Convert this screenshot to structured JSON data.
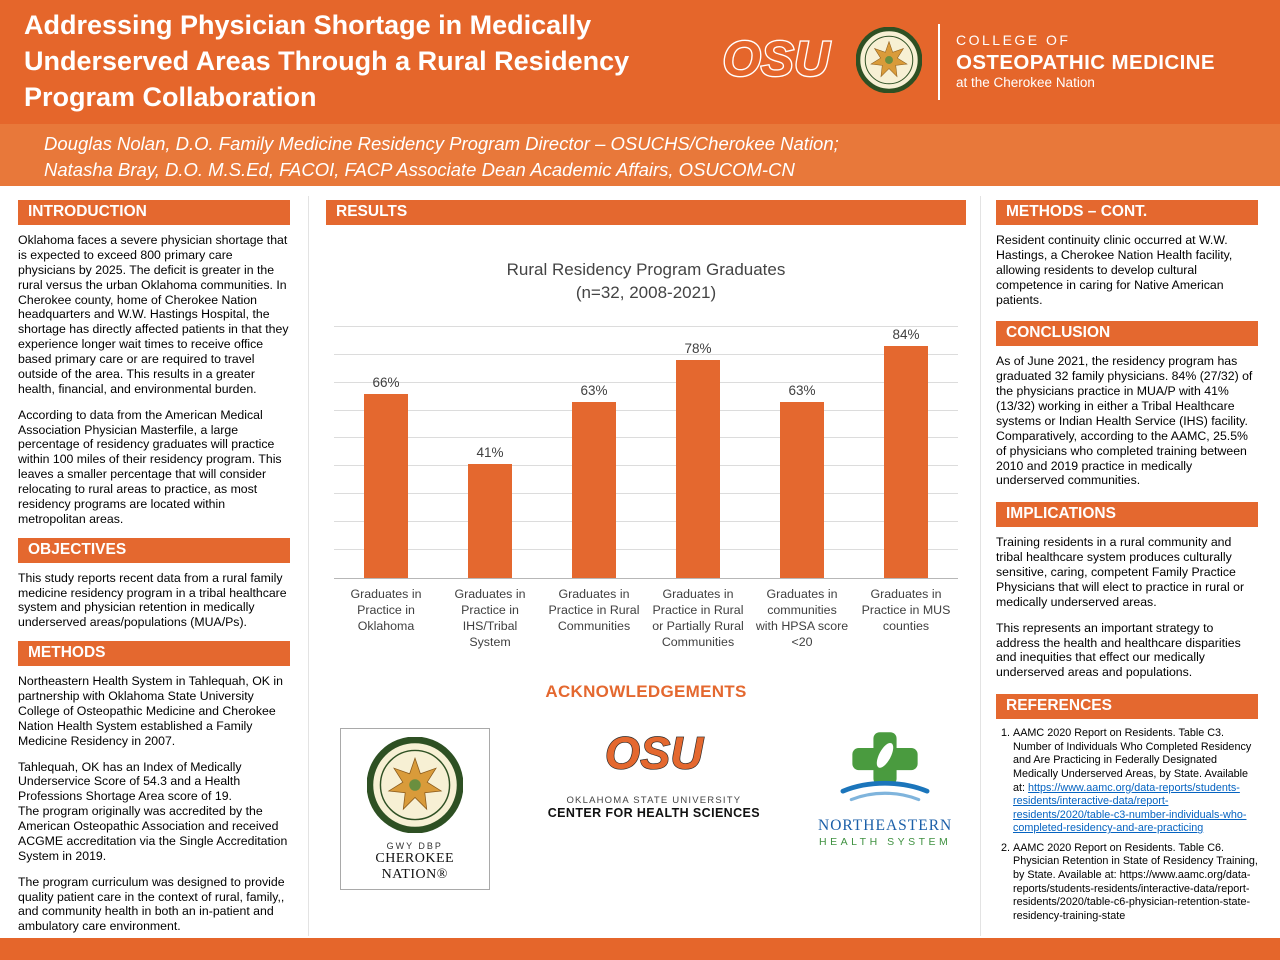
{
  "colors": {
    "header_orange": "#E5662B",
    "authors_orange": "#E8783A",
    "accent_orange": "#E4682F",
    "link_blue": "#0563C1",
    "ne_blue": "#1b5fa8",
    "ne_green": "#3f9140"
  },
  "header": {
    "title": "Addressing Physician Shortage in Medically Underserved Areas Through a Rural Residency Program Collaboration",
    "osu_logo_text": "OSU",
    "college_line1": "COLLEGE OF",
    "college_line2": "OSTEOPATHIC MEDICINE",
    "college_line3": "at the Cherokee Nation"
  },
  "authors": {
    "line1": "Douglas Nolan, D.O. Family Medicine Residency Program Director – OSUCHS/Cherokee Nation;",
    "line2": "Natasha Bray, D.O. M.S.Ed, FACOI, FACP Associate Dean Academic Affairs, OSUCOM-CN"
  },
  "left": {
    "introduction": {
      "title": "INTRODUCTION",
      "p1": "Oklahoma faces a severe physician shortage that is expected to exceed 800 primary care physicians by 2025.  The deficit is greater in the rural versus the urban Oklahoma communities.  In Cherokee county, home of Cherokee Nation headquarters and W.W. Hastings Hospital, the shortage has directly affected patients in that they experience longer wait times to receive office based primary care or are required to travel outside of the area. This results in a greater health, financial, and environmental burden.",
      "p2": "According to data from the American Medical Association Physician Masterfile, a large percentage of residency graduates will practice within 100 miles of their residency program.  This leaves a smaller percentage that will consider relocating to rural areas to practice, as most residency programs are located within metropolitan areas."
    },
    "objectives": {
      "title": "OBJECTIVES",
      "p1": "This study reports recent data from a rural family medicine residency program in a tribal healthcare system and physician retention in medically underserved areas/populations (MUA/Ps)."
    },
    "methods": {
      "title": "METHODS",
      "p1": "Northeastern Health System in Tahlequah, OK in partnership with Oklahoma State University College of Osteopathic Medicine and Cherokee Nation Health System established a Family Medicine Residency in 2007.",
      "p2": "Tahlequah, OK has an Index of Medically Underservice Score of 54.3 and a Health Professions Shortage Area score of 19.",
      "p3": "The program originally was accredited by the American Osteopathic Association and received ACGME accreditation via the Single Accreditation System in 2019.",
      "p4": "The program curriculum was designed to provide quality patient care in the context of rural, family,, and community health in  both an in-patient and ambulatory care environment."
    }
  },
  "middle": {
    "results_title": "RESULTS",
    "acknowledgements_title": "ACKNOWLEDGEMENTS",
    "logos": {
      "cherokee": {
        "syllabary": "GWY DBP",
        "name": "CHEROKEE NATION®"
      },
      "osu": {
        "mark": "OSU",
        "univ": "OKLAHOMA STATE UNIVERSITY",
        "center": "CENTER FOR HEALTH SCIENCES"
      },
      "northeastern": {
        "name": "NORTHEASTERN",
        "sub": "HEALTH  SYSTEM"
      }
    }
  },
  "right": {
    "methods_cont": {
      "title": "METHODS – CONT.",
      "p1": "Resident continuity clinic occurred at W.W. Hastings, a Cherokee Nation Health facility, allowing residents to develop cultural competence in caring for Native American patients."
    },
    "conclusion": {
      "title": "CONCLUSION",
      "p1": "As of June 2021, the residency program has graduated 32 family physicians.  84% (27/32) of the physicians practice in MUA/P with 41% (13/32) working in either a Tribal Healthcare systems or Indian Health Service (IHS) facility. Comparatively, according to the AAMC, 25.5% of physicians who completed training between 2010 and 2019 practice in medically underserved communities."
    },
    "implications": {
      "title": "IMPLICATIONS",
      "p1": "Training residents in a rural community and tribal healthcare system produces culturally sensitive, caring, competent Family Practice Physicians that will elect to practice in rural or medically underserved areas.",
      "p2": "This represents an important strategy to address the health and healthcare disparities and inequities that effect our medically underserved areas and populations."
    },
    "references": {
      "title": "REFERENCES",
      "items": [
        {
          "text": "AAMC 2020 Report on Residents. Table C3. Number of Individuals Who Completed Residency and Are Practicing in Federally Designated Medically Underserved Areas, by State. Available at: ",
          "link": "https://www.aamc.org/data-reports/students-residents/interactive-data/report-residents/2020/table-c3-number-individuals-who-completed-residency-and-are-practicing"
        },
        {
          "text": "AAMC 2020 Report on Residents. Table C6. Physician Retention in State of Residency Training, by State. Available at: https://www.aamc.org/data-reports/students-residents/interactive-data/report-residents/2020/table-c6-physician-retention-state-residency-training-state",
          "link": ""
        }
      ]
    }
  },
  "chart_data": {
    "type": "bar",
    "title": "Rural Residency Program Graduates",
    "subtitle": "(n=32, 2008-2021)",
    "categories": [
      "Graduates in Practice in Oklahoma",
      "Graduates in Practice in IHS/Tribal System",
      "Graduates in Practice in Rural Communities",
      "Graduates in Practice in Rural or Partially Rural Communities",
      "Graduates in communities with HPSA score <20",
      "Graduates in Practice in MUS counties"
    ],
    "values": [
      66,
      41,
      63,
      78,
      63,
      84
    ],
    "labels": [
      "66%",
      "41%",
      "63%",
      "78%",
      "63%",
      "84%"
    ],
    "xlabel": "",
    "ylabel": "",
    "ylim": [
      0,
      90
    ],
    "gridline_step": 10,
    "grid": true,
    "legend": false,
    "bar_color": "#E4682F"
  }
}
